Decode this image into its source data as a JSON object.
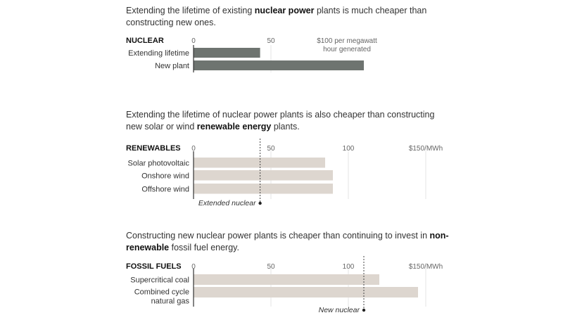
{
  "intros": [
    {
      "pre": "Extending the lifetime of existing ",
      "bold": "nuclear power",
      "post": " plants is much cheaper than constructing new ones."
    },
    {
      "pre": "Extending the lifetime of nuclear power plants is also cheaper than constructing new solar or wind ",
      "bold": "renewable energy",
      "post": " plants."
    },
    {
      "pre": "Constructing new nuclear power plants is cheaper than continuing to invest in ",
      "bold": "non-renewable",
      "post": " fossil fuel energy."
    }
  ],
  "chart_data": [
    {
      "type": "bar",
      "title": "NUCLEAR",
      "unit_label_lines": [
        "$100 per megawatt",
        "hour generated"
      ],
      "tick_values": [
        0,
        50
      ],
      "tick_labels": [
        "0",
        "50"
      ],
      "xlim": [
        0,
        150
      ],
      "categories": [
        [
          "Extending lifetime"
        ],
        [
          "New plant"
        ]
      ],
      "values": [
        43,
        110
      ],
      "bar_color": "#6e7470"
    },
    {
      "type": "bar",
      "title": "RENEWABLES",
      "tick_values": [
        0,
        50,
        100,
        150
      ],
      "tick_labels": [
        "0",
        "50",
        "100",
        "$150/MWh"
      ],
      "xlim": [
        0,
        150
      ],
      "categories": [
        [
          "Solar photovoltaic"
        ],
        [
          "Onshore wind"
        ],
        [
          "Offshore wind"
        ]
      ],
      "values": [
        85,
        90,
        90
      ],
      "bar_color": "#ddd6cf",
      "reference": {
        "label": "Extended nuclear",
        "value": 43
      }
    },
    {
      "type": "bar",
      "title": "FOSSIL FUELS",
      "tick_values": [
        0,
        50,
        100,
        150
      ],
      "tick_labels": [
        "0",
        "50",
        "100",
        "$150/MWh"
      ],
      "xlim": [
        0,
        150
      ],
      "categories": [
        [
          "Supercritical coal"
        ],
        [
          "Combined cycle",
          "natural gas"
        ]
      ],
      "values": [
        120,
        145
      ],
      "bar_color": "#ddd6cf",
      "reference": {
        "label": "New nuclear",
        "value": 110
      }
    }
  ]
}
